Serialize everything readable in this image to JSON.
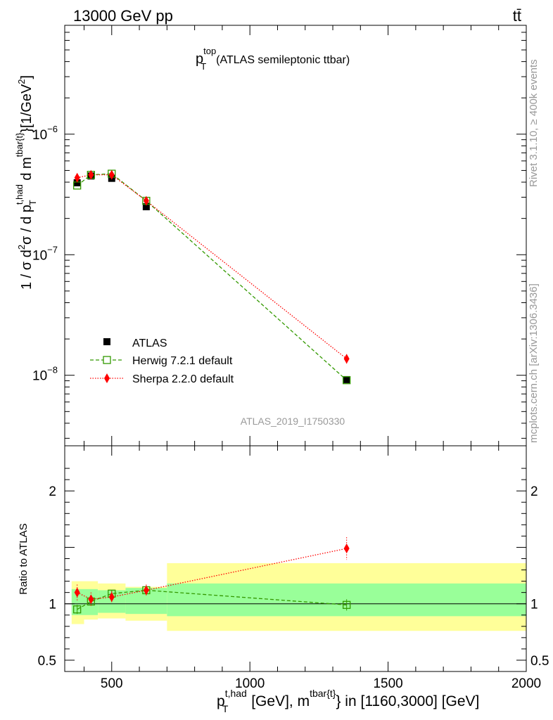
{
  "header": {
    "left_label": "13000 GeV pp",
    "right_label": "tt̄"
  },
  "side_labels": {
    "rivet": "Rivet 3.1.10, ≥ 400k events",
    "mcplots": "mcplots.cern.ch [arXiv:1306.3436]"
  },
  "chart_data": {
    "type": "scatter",
    "title": {
      "symbol": "p",
      "sup": "top",
      "sub": "T",
      "text": "(ATLAS semileptonic ttbar)"
    },
    "analysis_id": "ATLAS_2019_I1750330",
    "xlabel": {
      "p": "p",
      "p_sup": "t,had",
      "p_sub": "T",
      "mid": " [GeV], m",
      "m_sup": "tbar{t}",
      "tail": "} in [1160,3000] [GeV]"
    },
    "ylabel": "1 / σ d²σ / d p_T^{t,had} d m^{tbar{t}} [1/GeV²]",
    "ylabel_parts": {
      "a": "1 / σ d",
      "sup2": "2",
      "b": "σ / d p",
      "p_sup": "t,had",
      "p_sub": "T",
      "c": " d m",
      "m_sup": "tbar{t}",
      "d": "}[1/GeV",
      "e": "]"
    },
    "ratio_ylabel": "Ratio to ATLAS",
    "xlim": [
      330,
      2000
    ],
    "x_ticks": [
      500,
      1000,
      1500,
      2000
    ],
    "x_tick_labels": [
      "500",
      "1000",
      "1500",
      "2000"
    ],
    "ylim_main": [
      2.6e-09,
      8e-06
    ],
    "y_log": true,
    "y_ticks_main": [
      {
        "base": "10",
        "exp": "−6",
        "value": 1e-06
      },
      {
        "base": "10",
        "exp": "−7",
        "value": 1e-07
      },
      {
        "base": "10",
        "exp": "−8",
        "value": 1e-08
      }
    ],
    "ylim_ratio": [
      0.4,
      2.4
    ],
    "y_ticks_ratio": [
      {
        "value": 2,
        "label": "2"
      },
      {
        "value": 1,
        "label": "1"
      },
      {
        "value": 0.5,
        "label": "0.5"
      }
    ],
    "bins": [
      {
        "lo": 355,
        "hi": 400,
        "x": 375
      },
      {
        "lo": 400,
        "hi": 450,
        "x": 425
      },
      {
        "lo": 450,
        "hi": 550,
        "x": 500
      },
      {
        "lo": 550,
        "hi": 700,
        "x": 625
      },
      {
        "lo": 700,
        "hi": 2000,
        "x": 1350
      }
    ],
    "series": [
      {
        "name": "ATLAS",
        "marker": "square-filled",
        "color": "#000000",
        "values": [
          3.95e-07,
          4.5e-07,
          4.3e-07,
          2.5e-07,
          9.2e-09
        ]
      },
      {
        "name": "Herwig 7.2.1 default",
        "marker": "square-open",
        "color": "#339900",
        "line": "dashed",
        "values": [
          3.75e-07,
          4.6e-07,
          4.7e-07,
          2.8e-07,
          9.1e-09
        ],
        "ratio": [
          0.95,
          1.02,
          1.09,
          1.12,
          0.99
        ],
        "ratio_err": [
          0.04,
          0.03,
          0.03,
          0.04,
          0.05
        ]
      },
      {
        "name": "Sherpa 2.2.0 default",
        "marker": "diamond-filled",
        "color": "#ff0000",
        "line": "dotted",
        "values": [
          4.35e-07,
          4.6e-07,
          4.6e-07,
          2.8e-07,
          1.37e-08
        ],
        "errors": [
          2.5e-08,
          2e-08,
          2e-08,
          1.4e-08,
          1.2e-09
        ],
        "ratio": [
          1.1,
          1.04,
          1.06,
          1.12,
          1.49
        ],
        "ratio_err": [
          0.07,
          0.06,
          0.05,
          0.05,
          0.1
        ]
      }
    ],
    "uncertainty_bands": {
      "inner_color": "#99ff99",
      "outer_color": "#ffff99",
      "inner": [
        [
          0.9,
          1.13
        ],
        [
          0.9,
          1.13
        ],
        [
          0.92,
          1.12
        ],
        [
          0.91,
          1.14
        ],
        [
          0.89,
          1.18
        ]
      ],
      "outer": [
        [
          0.82,
          1.2
        ],
        [
          0.86,
          1.2
        ],
        [
          0.87,
          1.18
        ],
        [
          0.85,
          1.15
        ],
        [
          0.76,
          1.36
        ]
      ]
    },
    "legend_position": "lower-left"
  }
}
